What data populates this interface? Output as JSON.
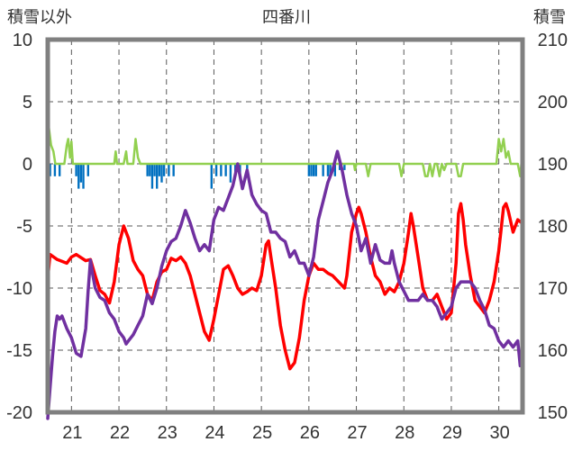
{
  "chart_data": {
    "type": "line",
    "title": "四番川",
    "ylabel_left": "積雪以外",
    "ylabel_right": "積雪",
    "x_tick_labels": [
      "21",
      "22",
      "23",
      "24",
      "25",
      "26",
      "27",
      "28",
      "29",
      "30"
    ],
    "x_tick_positions": [
      21,
      22,
      23,
      24,
      25,
      26,
      27,
      28,
      29,
      30
    ],
    "xlim": [
      20.5,
      30.5
    ],
    "ylim_left": [
      -20,
      10
    ],
    "ylim_right": [
      150,
      210
    ],
    "yticks_left": [
      10,
      5,
      0,
      -5,
      -10,
      -15,
      -20
    ],
    "yticks_right": [
      210,
      200,
      190,
      180,
      170,
      160,
      150
    ],
    "grid": true,
    "colors": {
      "red_series": "#ff0000",
      "purple_series": "#7030a0",
      "green_series": "#92d050",
      "blue_bars": "#0070c0",
      "frame": "#808080",
      "grid": "#595959"
    },
    "series": [
      {
        "axis": "left",
        "color": "#ff0000",
        "values": [
          [
            20.5,
            -9.2
          ],
          [
            20.55,
            -7.3
          ],
          [
            20.7,
            -7.7
          ],
          [
            20.9,
            -8.0
          ],
          [
            21.0,
            -7.5
          ],
          [
            21.1,
            -7.3
          ],
          [
            21.3,
            -7.8
          ],
          [
            21.4,
            -7.7
          ],
          [
            21.5,
            -9.0
          ],
          [
            21.6,
            -10.2
          ],
          [
            21.7,
            -10.5
          ],
          [
            21.8,
            -11.2
          ],
          [
            21.9,
            -9.5
          ],
          [
            22.0,
            -6.5
          ],
          [
            22.1,
            -5.0
          ],
          [
            22.2,
            -6.0
          ],
          [
            22.3,
            -7.8
          ],
          [
            22.4,
            -8.5
          ],
          [
            22.5,
            -9.0
          ],
          [
            22.6,
            -10.5
          ],
          [
            22.7,
            -11.0
          ],
          [
            22.8,
            -9.5
          ],
          [
            22.9,
            -8.7
          ],
          [
            23.0,
            -8.5
          ],
          [
            23.1,
            -7.6
          ],
          [
            23.2,
            -7.8
          ],
          [
            23.3,
            -7.5
          ],
          [
            23.4,
            -8.0
          ],
          [
            23.5,
            -9.0
          ],
          [
            23.6,
            -10.5
          ],
          [
            23.7,
            -12.0
          ],
          [
            23.8,
            -13.5
          ],
          [
            23.9,
            -14.2
          ],
          [
            24.0,
            -12.5
          ],
          [
            24.1,
            -10.5
          ],
          [
            24.2,
            -8.5
          ],
          [
            24.3,
            -8.2
          ],
          [
            24.4,
            -9.0
          ],
          [
            24.5,
            -10.0
          ],
          [
            24.6,
            -10.5
          ],
          [
            24.7,
            -10.3
          ],
          [
            24.8,
            -10.0
          ],
          [
            24.9,
            -10.2
          ],
          [
            25.0,
            -9.0
          ],
          [
            25.1,
            -6.5
          ],
          [
            25.15,
            -6.2
          ],
          [
            25.2,
            -7.5
          ],
          [
            25.3,
            -10.0
          ],
          [
            25.4,
            -13.0
          ],
          [
            25.5,
            -15.0
          ],
          [
            25.6,
            -16.5
          ],
          [
            25.7,
            -16.0
          ],
          [
            25.8,
            -14.0
          ],
          [
            25.9,
            -11.0
          ],
          [
            26.0,
            -9.0
          ],
          [
            26.1,
            -8.0
          ],
          [
            26.2,
            -8.5
          ],
          [
            26.3,
            -8.5
          ],
          [
            26.4,
            -8.8
          ],
          [
            26.5,
            -9.0
          ],
          [
            26.75,
            -10.0
          ],
          [
            26.8,
            -9.0
          ],
          [
            26.9,
            -5.5
          ],
          [
            27.0,
            -4.0
          ],
          [
            27.05,
            -3.5
          ],
          [
            27.1,
            -4.0
          ],
          [
            27.2,
            -5.5
          ],
          [
            27.3,
            -7.5
          ],
          [
            27.4,
            -9.0
          ],
          [
            27.5,
            -9.5
          ],
          [
            27.6,
            -10.5
          ],
          [
            27.7,
            -10.0
          ],
          [
            27.8,
            -10.3
          ],
          [
            27.9,
            -9.5
          ],
          [
            28.0,
            -8.0
          ],
          [
            28.1,
            -5.5
          ],
          [
            28.15,
            -4.0
          ],
          [
            28.2,
            -5.0
          ],
          [
            28.3,
            -7.5
          ],
          [
            28.4,
            -10.0
          ],
          [
            28.5,
            -11.0
          ],
          [
            28.6,
            -11.0
          ],
          [
            28.7,
            -10.5
          ],
          [
            28.8,
            -11.5
          ],
          [
            28.9,
            -12.5
          ],
          [
            29.0,
            -12.0
          ],
          [
            29.1,
            -8.0
          ],
          [
            29.15,
            -4.0
          ],
          [
            29.2,
            -3.2
          ],
          [
            29.25,
            -4.5
          ],
          [
            29.3,
            -6.5
          ],
          [
            29.4,
            -9.0
          ],
          [
            29.5,
            -11.0
          ],
          [
            29.6,
            -11.5
          ],
          [
            29.7,
            -12.0
          ],
          [
            29.8,
            -11.0
          ],
          [
            29.9,
            -9.5
          ],
          [
            30.0,
            -7.0
          ],
          [
            30.1,
            -3.5
          ],
          [
            30.15,
            -3.2
          ],
          [
            30.2,
            -3.8
          ],
          [
            30.3,
            -5.5
          ],
          [
            30.4,
            -4.5
          ],
          [
            30.5,
            -4.8
          ]
        ]
      },
      {
        "axis": "right",
        "color": "#7030a0",
        "values": [
          [
            20.5,
            149.0
          ],
          [
            20.55,
            154.0
          ],
          [
            20.6,
            159.0
          ],
          [
            20.65,
            163.0
          ],
          [
            20.7,
            165.5
          ],
          [
            20.75,
            165.0
          ],
          [
            20.8,
            165.5
          ],
          [
            20.9,
            163.5
          ],
          [
            21.0,
            162.0
          ],
          [
            21.1,
            159.5
          ],
          [
            21.2,
            159.0
          ],
          [
            21.3,
            163.5
          ],
          [
            21.35,
            169.5
          ],
          [
            21.4,
            174.5
          ],
          [
            21.45,
            172.0
          ],
          [
            21.5,
            170.0
          ],
          [
            21.6,
            168.5
          ],
          [
            21.7,
            168.0
          ],
          [
            21.8,
            166.0
          ],
          [
            21.9,
            165.0
          ],
          [
            22.0,
            163.0
          ],
          [
            22.1,
            162.0
          ],
          [
            22.15,
            161.0
          ],
          [
            22.2,
            161.5
          ],
          [
            22.3,
            162.5
          ],
          [
            22.4,
            164.0
          ],
          [
            22.5,
            165.5
          ],
          [
            22.6,
            169.0
          ],
          [
            22.7,
            167.5
          ],
          [
            22.8,
            170.0
          ],
          [
            22.9,
            173.5
          ],
          [
            23.0,
            176.0
          ],
          [
            23.1,
            177.5
          ],
          [
            23.2,
            178.0
          ],
          [
            23.3,
            180.0
          ],
          [
            23.4,
            182.5
          ],
          [
            23.5,
            180.5
          ],
          [
            23.6,
            178.0
          ],
          [
            23.7,
            176.0
          ],
          [
            23.8,
            177.0
          ],
          [
            23.9,
            176.0
          ],
          [
            24.0,
            181.0
          ],
          [
            24.1,
            183.0
          ],
          [
            24.2,
            182.5
          ],
          [
            24.3,
            184.5
          ],
          [
            24.4,
            186.5
          ],
          [
            24.5,
            190.0
          ],
          [
            24.6,
            186.0
          ],
          [
            24.7,
            189.0
          ],
          [
            24.8,
            185.0
          ],
          [
            24.9,
            183.5
          ],
          [
            25.0,
            182.5
          ],
          [
            25.1,
            182.0
          ],
          [
            25.2,
            179.0
          ],
          [
            25.3,
            179.0
          ],
          [
            25.4,
            178.0
          ],
          [
            25.5,
            177.5
          ],
          [
            25.6,
            175.0
          ],
          [
            25.7,
            176.0
          ],
          [
            25.8,
            174.0
          ],
          [
            25.9,
            174.0
          ],
          [
            26.0,
            172.0
          ],
          [
            26.1,
            175.0
          ],
          [
            26.2,
            181.0
          ],
          [
            26.3,
            184.0
          ],
          [
            26.4,
            187.0
          ],
          [
            26.5,
            189.0
          ],
          [
            26.6,
            192.0
          ],
          [
            26.7,
            189.0
          ],
          [
            26.8,
            185.0
          ],
          [
            26.9,
            182.0
          ],
          [
            27.0,
            180.0
          ],
          [
            27.1,
            176.0
          ],
          [
            27.2,
            178.0
          ],
          [
            27.3,
            174.0
          ],
          [
            27.4,
            177.0
          ],
          [
            27.5,
            174.5
          ],
          [
            27.6,
            174.0
          ],
          [
            27.7,
            174.0
          ],
          [
            27.75,
            176.0
          ],
          [
            27.8,
            174.0
          ],
          [
            27.9,
            171.0
          ],
          [
            28.0,
            169.5
          ],
          [
            28.1,
            168.0
          ],
          [
            28.2,
            168.0
          ],
          [
            28.3,
            168.0
          ],
          [
            28.4,
            169.0
          ],
          [
            28.5,
            168.0
          ],
          [
            28.6,
            168.0
          ],
          [
            28.7,
            167.0
          ],
          [
            28.8,
            165.0
          ],
          [
            28.9,
            166.0
          ],
          [
            29.0,
            167.0
          ],
          [
            29.1,
            170.0
          ],
          [
            29.2,
            171.0
          ],
          [
            29.3,
            171.0
          ],
          [
            29.4,
            171.0
          ],
          [
            29.5,
            170.0
          ],
          [
            29.6,
            168.0
          ],
          [
            29.7,
            166.5
          ],
          [
            29.8,
            164.0
          ],
          [
            29.9,
            163.5
          ],
          [
            30.0,
            161.5
          ],
          [
            30.1,
            160.5
          ],
          [
            30.2,
            161.5
          ],
          [
            30.3,
            160.5
          ],
          [
            30.4,
            161.5
          ],
          [
            30.45,
            157.5
          ],
          [
            30.5,
            158.5
          ]
        ]
      },
      {
        "axis": "left",
        "color": "#92d050",
        "values": [
          [
            20.5,
            0.0
          ],
          [
            20.52,
            3.0
          ],
          [
            20.57,
            1.5
          ],
          [
            20.62,
            1.0
          ],
          [
            20.66,
            0.0
          ],
          [
            20.85,
            0.0
          ],
          [
            20.9,
            1.5
          ],
          [
            20.93,
            2.0
          ],
          [
            20.97,
            0.5
          ],
          [
            21.0,
            1.8
          ],
          [
            21.03,
            0.0
          ],
          [
            21.9,
            0.0
          ],
          [
            21.93,
            1.0
          ],
          [
            21.96,
            0.0
          ],
          [
            22.1,
            0.0
          ],
          [
            22.15,
            1.0
          ],
          [
            22.18,
            0.0
          ],
          [
            22.3,
            0.0
          ],
          [
            22.35,
            2.0
          ],
          [
            22.4,
            0.5
          ],
          [
            22.45,
            0.0
          ],
          [
            26.95,
            0.0
          ],
          [
            26.97,
            -0.5
          ],
          [
            27.0,
            0.0
          ],
          [
            27.2,
            0.0
          ],
          [
            27.25,
            -1.0
          ],
          [
            27.3,
            0.0
          ],
          [
            27.9,
            0.0
          ],
          [
            27.95,
            -1.0
          ],
          [
            28.0,
            0.0
          ],
          [
            28.4,
            0.0
          ],
          [
            28.45,
            -1.0
          ],
          [
            28.5,
            -1.0
          ],
          [
            28.55,
            0.0
          ],
          [
            28.6,
            -1.0
          ],
          [
            28.65,
            0.0
          ],
          [
            28.7,
            0.0
          ],
          [
            28.75,
            -1.0
          ],
          [
            28.8,
            0.0
          ],
          [
            28.85,
            -0.5
          ],
          [
            28.9,
            0.0
          ],
          [
            29.1,
            0.0
          ],
          [
            29.15,
            -1.0
          ],
          [
            29.2,
            -1.0
          ],
          [
            29.25,
            0.0
          ],
          [
            29.95,
            0.0
          ],
          [
            30.0,
            2.0
          ],
          [
            30.05,
            1.0
          ],
          [
            30.1,
            2.0
          ],
          [
            30.15,
            0.5
          ],
          [
            30.2,
            1.0
          ],
          [
            30.25,
            0.0
          ],
          [
            30.4,
            0.0
          ],
          [
            30.45,
            -1.0
          ],
          [
            30.5,
            1.0
          ]
        ]
      }
    ],
    "bars": {
      "axis": "left",
      "color": "#0070c0",
      "values": [
        [
          20.55,
          -1.0
        ],
        [
          20.65,
          -1.0
        ],
        [
          20.75,
          -1.0
        ],
        [
          21.1,
          -1.0
        ],
        [
          21.15,
          -2.0
        ],
        [
          21.2,
          -1.5
        ],
        [
          21.25,
          -2.0
        ],
        [
          21.35,
          -1.0
        ],
        [
          22.6,
          -1.0
        ],
        [
          22.65,
          -1.0
        ],
        [
          22.7,
          -2.0
        ],
        [
          22.75,
          -1.0
        ],
        [
          22.8,
          -2.0
        ],
        [
          22.85,
          -1.0
        ],
        [
          22.9,
          -1.5
        ],
        [
          22.95,
          -1.0
        ],
        [
          23.05,
          -1.0
        ],
        [
          23.15,
          -1.0
        ],
        [
          23.95,
          -2.0
        ],
        [
          24.05,
          -1.0
        ],
        [
          24.15,
          -1.0
        ],
        [
          24.25,
          -1.0
        ],
        [
          24.35,
          -1.5
        ],
        [
          24.45,
          -1.0
        ],
        [
          24.55,
          -1.0
        ],
        [
          24.7,
          -1.0
        ],
        [
          26.0,
          -1.0
        ],
        [
          26.05,
          -1.0
        ],
        [
          26.1,
          -1.0
        ],
        [
          26.15,
          -1.0
        ],
        [
          26.3,
          -1.0
        ],
        [
          26.4,
          -1.0
        ],
        [
          26.45,
          -1.0
        ],
        [
          26.55,
          -1.0
        ],
        [
          26.65,
          -0.5
        ],
        [
          26.75,
          -0.5
        ]
      ]
    }
  }
}
